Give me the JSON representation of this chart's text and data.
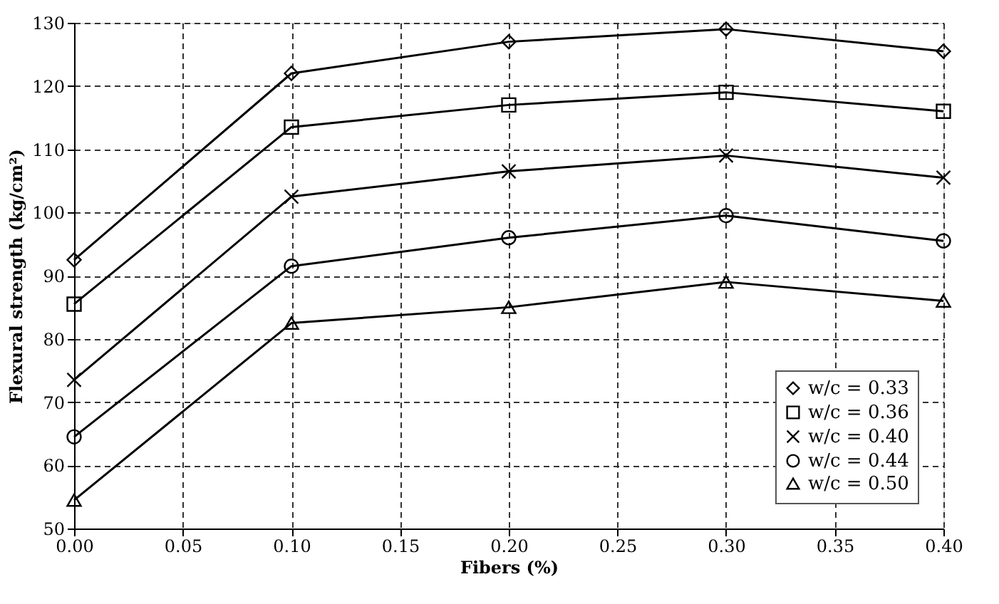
{
  "chart_data": {
    "type": "line",
    "xlabel": "Fibers (%)",
    "ylabel": "Flexural strength (kg/cm²)",
    "x": [
      0.0,
      0.1,
      0.2,
      0.3,
      0.4
    ],
    "xlim": [
      0.0,
      0.4
    ],
    "xticks": [
      {
        "value": 0,
        "label": "0.00"
      },
      0.05,
      {
        "value": 0.1,
        "label": "0.10"
      },
      0.15,
      {
        "value": 0.2,
        "label": "0.20"
      },
      0.25,
      {
        "value": 0.3,
        "label": "0.30"
      },
      0.35,
      {
        "value": 0.4,
        "label": "0.40"
      }
    ],
    "ylim": [
      50,
      130
    ],
    "yticks": [
      50,
      60,
      70,
      80,
      90,
      100,
      110,
      120,
      130
    ],
    "grid": true,
    "legend": "bottom right",
    "line_style": "solid",
    "series": [
      {
        "name": "w/c = 0.33",
        "color": "#000000",
        "marker": "diamond",
        "values": [
          92.5,
          122,
          127,
          129,
          125.5
        ]
      },
      {
        "name": "w/c = 0.36",
        "color": "#000000",
        "marker": "square",
        "values": [
          85.5,
          113.5,
          117,
          119,
          116
        ]
      },
      {
        "name": "w/c = 0.40",
        "color": "#000000",
        "marker": "cross",
        "values": [
          73.5,
          102.5,
          106.5,
          109,
          105.5
        ]
      },
      {
        "name": "w/c = 0.44",
        "color": "#000000",
        "marker": "circle",
        "values": [
          64.5,
          91.5,
          96,
          99.5,
          95.5
        ]
      },
      {
        "name": "w/c = 0.50",
        "color": "#000000",
        "marker": "triangle",
        "values": [
          54.5,
          82.5,
          85,
          89,
          86
        ]
      }
    ]
  }
}
